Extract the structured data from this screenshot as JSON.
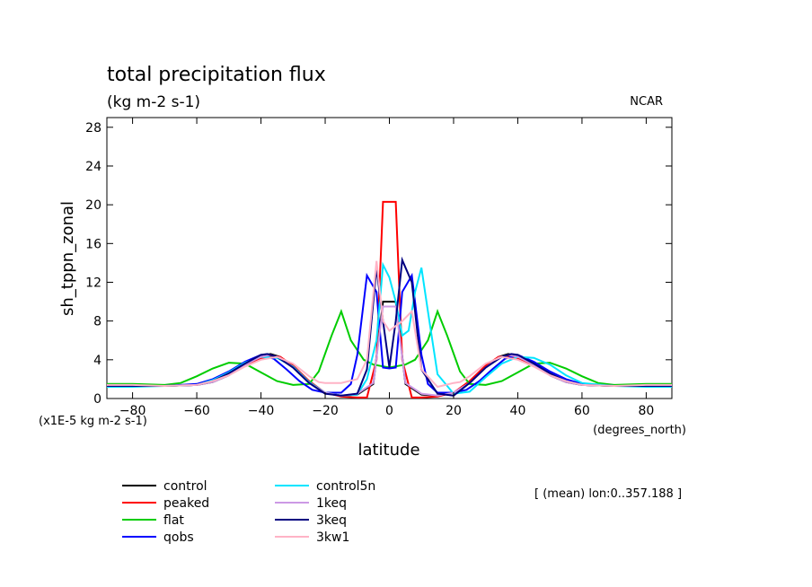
{
  "chart_data": {
    "type": "line",
    "title": "total precipitation flux",
    "subtitle": "(kg m-2 s-1)",
    "source": "NCAR",
    "xlabel": "latitude",
    "xunits": "(degrees_north)",
    "ylabel": "sh_tppn_zonal",
    "yunits": "(x1E-5 kg m-2 s-1)",
    "xlim": [
      -88,
      88
    ],
    "ylim": [
      0,
      29
    ],
    "xticks": [
      -80,
      -60,
      -40,
      -20,
      0,
      20,
      40,
      60,
      80
    ],
    "yticks": [
      0,
      4,
      8,
      12,
      16,
      20,
      24,
      28
    ],
    "grid": false,
    "legend_position": "bottom",
    "annotation": "[ (mean) lon:0..357.188 ]",
    "series": [
      {
        "name": "control",
        "color": "#000000",
        "x": [
          -88,
          -80,
          -70,
          -60,
          -55,
          -50,
          -45,
          -40,
          -37,
          -34,
          -30,
          -25,
          -20,
          -15,
          -10,
          -5,
          -2,
          0,
          2,
          5,
          10,
          15,
          20,
          25,
          30,
          34,
          37,
          40,
          45,
          50,
          55,
          60,
          70,
          80,
          88
        ],
        "y": [
          1.3,
          1.3,
          1.3,
          1.4,
          1.7,
          2.4,
          3.6,
          4.4,
          4.6,
          4.3,
          3.2,
          1.6,
          0.6,
          0.3,
          0.4,
          1.5,
          10,
          10,
          10,
          1.5,
          0.4,
          0.3,
          0.6,
          1.6,
          3.2,
          4.3,
          4.6,
          4.4,
          3.6,
          2.4,
          1.7,
          1.4,
          1.3,
          1.3,
          1.3
        ]
      },
      {
        "name": "peaked",
        "color": "#ff0000",
        "x": [
          -88,
          -80,
          -70,
          -60,
          -55,
          -50,
          -45,
          -40,
          -37,
          -34,
          -30,
          -25,
          -20,
          -15,
          -10,
          -7,
          -4,
          -2,
          0,
          2,
          4,
          7,
          10,
          15,
          20,
          25,
          30,
          34,
          37,
          40,
          45,
          50,
          55,
          60,
          70,
          80,
          88
        ],
        "y": [
          1.3,
          1.3,
          1.3,
          1.4,
          1.8,
          2.5,
          3.5,
          4.1,
          4.4,
          4.3,
          3.4,
          1.8,
          0.6,
          0.2,
          0.1,
          0.1,
          4,
          20.3,
          20.3,
          20.3,
          4,
          0.1,
          0.1,
          0.2,
          0.6,
          1.8,
          3.4,
          4.3,
          4.4,
          4.1,
          3.5,
          2.5,
          1.8,
          1.4,
          1.3,
          1.3,
          1.3
        ]
      },
      {
        "name": "flat",
        "color": "#00cc00",
        "x": [
          -88,
          -80,
          -70,
          -65,
          -60,
          -55,
          -50,
          -45,
          -40,
          -35,
          -30,
          -25,
          -22,
          -18,
          -15,
          -12,
          -8,
          -5,
          0,
          5,
          8,
          12,
          15,
          18,
          22,
          25,
          30,
          35,
          40,
          45,
          50,
          55,
          60,
          65,
          70,
          80,
          88
        ],
        "y": [
          1.5,
          1.5,
          1.4,
          1.6,
          2.3,
          3.1,
          3.7,
          3.6,
          2.7,
          1.8,
          1.4,
          1.5,
          2.8,
          6.5,
          9,
          6,
          4,
          3.5,
          3.2,
          3.5,
          4,
          6,
          9,
          6.5,
          2.8,
          1.5,
          1.4,
          1.8,
          2.7,
          3.6,
          3.7,
          3.1,
          2.3,
          1.6,
          1.4,
          1.5,
          1.5
        ]
      },
      {
        "name": "qobs",
        "color": "#0000ff",
        "x": [
          -88,
          -80,
          -70,
          -60,
          -55,
          -50,
          -45,
          -40,
          -36,
          -32,
          -28,
          -24,
          -20,
          -15,
          -12,
          -10,
          -7,
          -4,
          -2,
          0,
          2,
          4,
          7,
          10,
          12,
          15,
          20,
          24,
          28,
          32,
          36,
          40,
          45,
          50,
          55,
          60,
          70,
          80,
          88
        ],
        "y": [
          1.3,
          1.3,
          1.3,
          1.5,
          2,
          2.8,
          3.8,
          4.5,
          4.1,
          3,
          1.8,
          0.9,
          0.6,
          0.6,
          1.5,
          4.5,
          12.7,
          11,
          3.2,
          3.1,
          3.2,
          11,
          12.7,
          4.5,
          1.5,
          0.6,
          0.6,
          0.9,
          1.8,
          3,
          4.1,
          4.5,
          3.8,
          2.8,
          2,
          1.5,
          1.3,
          1.3,
          1.3
        ]
      },
      {
        "name": "control5n",
        "color": "#00e5ff",
        "x": [
          -88,
          -80,
          -70,
          -60,
          -55,
          -50,
          -45,
          -40,
          -35,
          -30,
          -25,
          -20,
          -15,
          -10,
          -7,
          -4,
          -2,
          0,
          2,
          4,
          6,
          8,
          10,
          12,
          15,
          20,
          25,
          30,
          35,
          40,
          45,
          50,
          55,
          60,
          70,
          80,
          88
        ],
        "y": [
          1.2,
          1.2,
          1.3,
          1.4,
          1.9,
          2.7,
          3.7,
          4.3,
          4.2,
          3.3,
          1.7,
          0.6,
          0.3,
          0.4,
          2,
          6,
          13.8,
          12.5,
          10,
          6.5,
          7,
          11,
          13.5,
          9,
          2.5,
          0.5,
          0.7,
          2.2,
          3.6,
          4.3,
          4.2,
          3.5,
          2.4,
          1.6,
          1.3,
          1.2,
          1.2
        ]
      },
      {
        "name": "1keq",
        "color": "#cc99e5",
        "x": [
          -88,
          -80,
          -70,
          -60,
          -55,
          -50,
          -45,
          -40,
          -37,
          -34,
          -30,
          -25,
          -20,
          -15,
          -10,
          -5,
          -2,
          0,
          2,
          5,
          10,
          15,
          20,
          25,
          30,
          34,
          37,
          40,
          45,
          50,
          55,
          60,
          70,
          80,
          88
        ],
        "y": [
          1.3,
          1.3,
          1.3,
          1.4,
          1.7,
          2.4,
          3.5,
          4.3,
          4.5,
          4.2,
          3.2,
          1.6,
          0.6,
          0.3,
          0.5,
          1.6,
          9.5,
          9.5,
          9.5,
          1.6,
          0.5,
          0.3,
          0.6,
          1.6,
          3.2,
          4.2,
          4.5,
          4.3,
          3.5,
          2.4,
          1.7,
          1.4,
          1.3,
          1.3,
          1.3
        ]
      },
      {
        "name": "3keq",
        "color": "#000080",
        "x": [
          -88,
          -80,
          -70,
          -60,
          -55,
          -50,
          -45,
          -40,
          -38,
          -35,
          -30,
          -25,
          -20,
          -15,
          -10,
          -7,
          -4,
          -2,
          0,
          2,
          4,
          7,
          10,
          15,
          20,
          25,
          30,
          35,
          38,
          40,
          45,
          50,
          55,
          60,
          70,
          80,
          88
        ],
        "y": [
          1.3,
          1.3,
          1.3,
          1.4,
          1.8,
          2.6,
          3.6,
          4.5,
          4.6,
          4.3,
          3.2,
          1.6,
          0.5,
          0.3,
          0.5,
          3,
          13.5,
          8,
          3.2,
          8,
          14.3,
          12,
          3,
          0.5,
          0.3,
          1.6,
          3.2,
          4.3,
          4.6,
          4.5,
          3.6,
          2.6,
          1.8,
          1.4,
          1.3,
          1.3,
          1.3
        ]
      },
      {
        "name": "3kw1",
        "color": "#ffb3c6",
        "x": [
          -88,
          -80,
          -70,
          -60,
          -55,
          -50,
          -45,
          -40,
          -35,
          -30,
          -25,
          -22,
          -20,
          -15,
          -10,
          -7,
          -4,
          -2,
          0,
          2,
          4,
          7,
          10,
          15,
          20,
          22,
          25,
          30,
          35,
          40,
          45,
          50,
          55,
          60,
          70,
          80,
          88
        ],
        "y": [
          1.4,
          1.4,
          1.3,
          1.4,
          1.8,
          2.4,
          3.3,
          4,
          4.3,
          3.6,
          2.3,
          1.7,
          1.6,
          1.6,
          2,
          4,
          14.2,
          8,
          7,
          7.5,
          8,
          9,
          3,
          1.2,
          1.6,
          1.7,
          2.3,
          3.6,
          4.3,
          4,
          3.3,
          2.4,
          1.8,
          1.4,
          1.3,
          1.4,
          1.4
        ]
      }
    ]
  }
}
